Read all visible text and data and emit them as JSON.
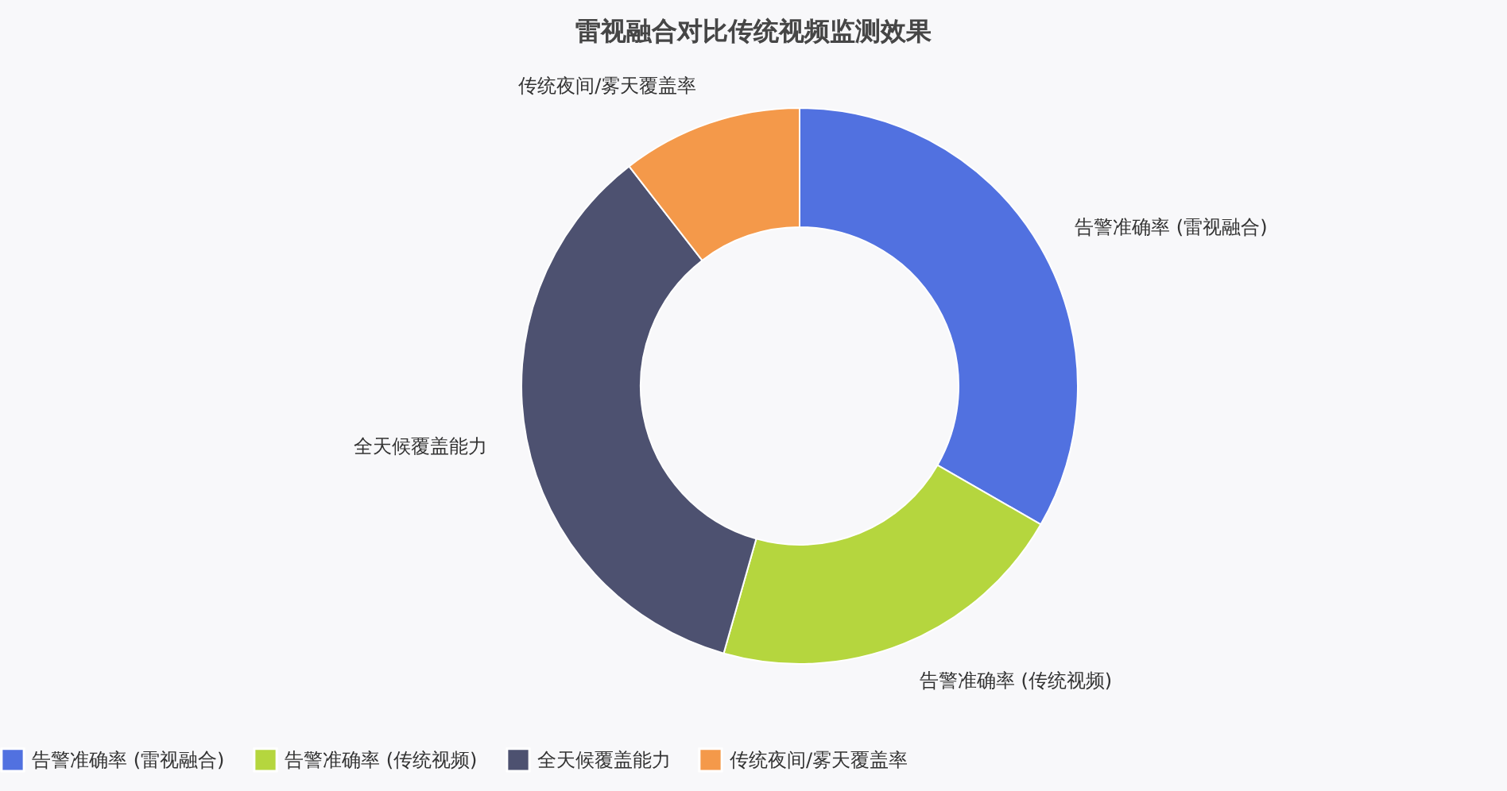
{
  "chart_data": {
    "type": "donut",
    "title": "雷视融合对比传统视频监测效果",
    "categories": [
      "告警准确率 (雷视融合)",
      "告警准确率 (传统视频)",
      "全天候覆盖能力",
      "传统夜间/雾天覆盖率"
    ],
    "values": [
      33.3,
      21.1,
      35.1,
      10.5
    ],
    "colors": [
      "#5171e0",
      "#b5d63e",
      "#4d5170",
      "#f4994a"
    ],
    "legend": "bottom"
  }
}
